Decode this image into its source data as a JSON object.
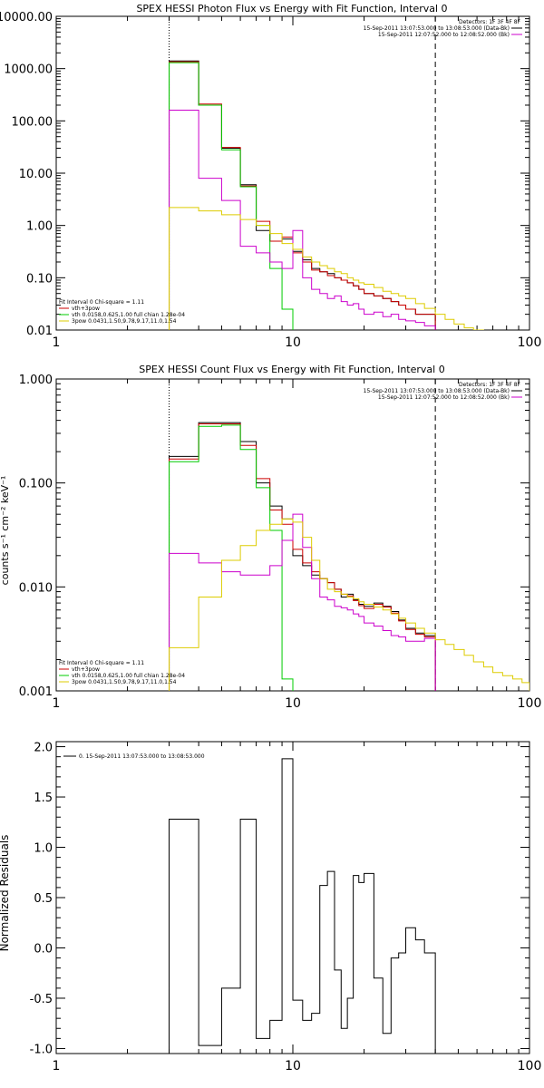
{
  "chart_data": [
    {
      "type": "line",
      "title": "SPEX HESSI Photon Flux vs Energy with Fit Function, Interval 0",
      "xscale": "log",
      "yscale": "log",
      "xlim": [
        1,
        100
      ],
      "ylim": [
        0.01,
        10000
      ],
      "xticks": [
        1,
        10,
        100
      ],
      "xticklabels": [
        "1",
        "10",
        "100"
      ],
      "yticks": [
        0.01,
        0.1,
        1,
        10,
        100,
        1000,
        10000
      ],
      "yticklabels": [
        "0.01",
        "0.10",
        "1.00",
        "10.00",
        "100.00",
        "1000.00",
        "10000.00"
      ],
      "vlines": [
        {
          "x": 3,
          "style": "dotted"
        },
        {
          "x": 40,
          "style": "dashed"
        }
      ],
      "legend_topright": [
        "Detectors: 1F 3F 4F 8F",
        "15-Sep-2011 13:07:53.000 to 13:08:53.000 (Data-Bk)",
        "15-Sep-2011 12:07:52.000 to 12:08:52.000 (Bk)"
      ],
      "legend_topright_colors": [
        "",
        "#000000",
        "#cc00cc"
      ],
      "legend_bottomleft": [
        "Fit Interval 0   Chi-square = 1.11",
        "vth+3pow",
        "vth 0.0158,0.625,1.00  full chian 1.28e-04",
        "3pow 0.0431,1.50,9.78,9.17,11.0,1.54"
      ],
      "legend_bottomleft_colors": [
        "",
        "#cc0000",
        "#00cc00",
        "#ddcc00"
      ],
      "series": [
        {
          "color": "#000000",
          "edges": [
            3,
            4,
            5,
            6,
            7,
            8,
            9,
            10,
            11,
            12,
            13,
            14,
            15,
            16,
            17,
            18,
            19,
            20,
            22,
            24,
            26,
            28,
            30,
            33,
            36,
            40
          ],
          "values": [
            1400,
            200,
            30,
            6,
            0.8,
            0.5,
            0.55,
            0.32,
            0.22,
            0.15,
            0.13,
            0.12,
            0.1,
            0.09,
            0.08,
            0.07,
            0.06,
            0.05,
            0.045,
            0.04,
            0.035,
            0.03,
            0.025,
            0.02,
            0.02
          ]
        },
        {
          "color": "#cc0000",
          "edges": [
            3,
            4,
            5,
            6,
            7,
            8,
            9,
            10,
            11,
            12,
            13,
            14,
            15,
            16,
            17,
            18,
            19,
            20,
            22,
            24,
            26,
            28,
            30,
            33,
            36,
            40
          ],
          "values": [
            1350,
            210,
            31,
            5.7,
            1.2,
            0.5,
            0.6,
            0.3,
            0.2,
            0.14,
            0.13,
            0.11,
            0.1,
            0.09,
            0.08,
            0.07,
            0.06,
            0.05,
            0.045,
            0.04,
            0.035,
            0.03,
            0.025,
            0.02,
            0.02
          ]
        },
        {
          "color": "#00cc00",
          "edges": [
            3,
            4,
            5,
            6,
            7,
            8,
            9,
            10
          ],
          "values": [
            1300,
            200,
            28,
            5.5,
            1.0,
            0.15,
            0.025
          ]
        },
        {
          "color": "#cc00cc",
          "edges": [
            3,
            4,
            5,
            6,
            7,
            8,
            9,
            10,
            11,
            12,
            13,
            14,
            15,
            16,
            17,
            18,
            19,
            20,
            22,
            24,
            26,
            28,
            30,
            33,
            36,
            40
          ],
          "values": [
            160,
            8,
            3,
            0.4,
            0.3,
            0.2,
            0.15,
            0.8,
            0.1,
            0.06,
            0.05,
            0.04,
            0.045,
            0.035,
            0.03,
            0.032,
            0.025,
            0.02,
            0.022,
            0.018,
            0.02,
            0.016,
            0.015,
            0.014,
            0.012
          ]
        },
        {
          "color": "#ddcc00",
          "edges": [
            3,
            4,
            5,
            6,
            7,
            8,
            9,
            10,
            11,
            12,
            13,
            14,
            15,
            16,
            17,
            18,
            19,
            20,
            22,
            24,
            26,
            28,
            30,
            33,
            36,
            40,
            44,
            48,
            53,
            58,
            64
          ],
          "values": [
            2.2,
            1.9,
            1.6,
            1.3,
            1.0,
            0.7,
            0.45,
            0.35,
            0.25,
            0.2,
            0.17,
            0.15,
            0.13,
            0.12,
            0.1,
            0.09,
            0.08,
            0.075,
            0.065,
            0.055,
            0.05,
            0.045,
            0.04,
            0.032,
            0.026,
            0.02,
            0.016,
            0.013,
            0.011,
            0.01
          ]
        }
      ]
    },
    {
      "type": "line",
      "title": "SPEX HESSI Count Flux vs Energy with Fit Function, Interval 0",
      "ylabel": "counts s⁻¹ cm⁻² keV⁻¹",
      "xscale": "log",
      "yscale": "log",
      "xlim": [
        1,
        100
      ],
      "ylim": [
        0.001,
        1
      ],
      "xticks": [
        1,
        10,
        100
      ],
      "xticklabels": [
        "1",
        "10",
        "100"
      ],
      "yticks": [
        0.001,
        0.01,
        0.1,
        1
      ],
      "yticklabels": [
        "0.001",
        "0.010",
        "0.100",
        "1.000"
      ],
      "vlines": [
        {
          "x": 3,
          "style": "dotted"
        },
        {
          "x": 40,
          "style": "dashed"
        }
      ],
      "legend_topright": [
        "Detectors: 1F 3F 4F 8F",
        "15-Sep-2011 13:07:53.000 to 13:08:53.000 (Data-Bk)",
        "15-Sep-2011 12:07:52.000 to 12:08:52.000 (Bk)"
      ],
      "legend_topright_colors": [
        "",
        "#000000",
        "#cc00cc"
      ],
      "legend_bottomleft": [
        "Fit Interval 0   Chi-square = 1.11",
        "vth+3pow",
        "vth 0.0158,0.625,1.00  full chian 1.28e-04",
        "3pow 0.0431,1.50,9.78,9.17,11.0,1.54"
      ],
      "legend_bottomleft_colors": [
        "",
        "#cc0000",
        "#00cc00",
        "#ddcc00"
      ],
      "series": [
        {
          "color": "#000000",
          "edges": [
            3,
            4,
            5,
            6,
            7,
            8,
            9,
            10,
            11,
            12,
            13,
            14,
            15,
            16,
            17,
            18,
            19,
            20,
            22,
            24,
            26,
            28,
            30,
            33,
            36,
            40
          ],
          "values": [
            0.18,
            0.38,
            0.38,
            0.25,
            0.1,
            0.06,
            0.045,
            0.02,
            0.016,
            0.013,
            0.012,
            0.011,
            0.0095,
            0.008,
            0.0085,
            0.0075,
            0.0068,
            0.0065,
            0.007,
            0.0065,
            0.0058,
            0.0048,
            0.004,
            0.0036,
            0.0034
          ]
        },
        {
          "color": "#cc0000",
          "edges": [
            3,
            4,
            5,
            6,
            7,
            8,
            9,
            10,
            11,
            12,
            13,
            14,
            15,
            16,
            17,
            18,
            19,
            20,
            22,
            24,
            26,
            28,
            30,
            33,
            36,
            40
          ],
          "values": [
            0.17,
            0.37,
            0.37,
            0.23,
            0.11,
            0.055,
            0.04,
            0.023,
            0.017,
            0.014,
            0.012,
            0.011,
            0.0095,
            0.0085,
            0.0082,
            0.0074,
            0.0066,
            0.0062,
            0.0068,
            0.0064,
            0.0056,
            0.0047,
            0.0039,
            0.0035,
            0.0033
          ]
        },
        {
          "color": "#00cc00",
          "edges": [
            3,
            4,
            5,
            6,
            7,
            8,
            9,
            10
          ],
          "values": [
            0.16,
            0.35,
            0.36,
            0.21,
            0.09,
            0.035,
            0.0013
          ]
        },
        {
          "color": "#cc00cc",
          "edges": [
            3,
            4,
            5,
            6,
            7,
            8,
            9,
            10,
            11,
            12,
            13,
            14,
            15,
            16,
            17,
            18,
            19,
            20,
            22,
            24,
            26,
            28,
            30,
            33,
            36,
            40
          ],
          "values": [
            0.021,
            0.017,
            0.014,
            0.013,
            0.013,
            0.016,
            0.028,
            0.05,
            0.024,
            0.012,
            0.008,
            0.0075,
            0.0065,
            0.0063,
            0.006,
            0.0055,
            0.0052,
            0.0045,
            0.0042,
            0.0038,
            0.0034,
            0.0033,
            0.003,
            0.003,
            0.0032
          ]
        },
        {
          "color": "#ddcc00",
          "edges": [
            3,
            4,
            5,
            6,
            7,
            8,
            9,
            10,
            11,
            12,
            13,
            14,
            15,
            16,
            17,
            18,
            19,
            20,
            22,
            24,
            26,
            28,
            30,
            33,
            36,
            40,
            44,
            48,
            53,
            58,
            64,
            70,
            77,
            85,
            93,
            100
          ],
          "values": [
            0.0026,
            0.008,
            0.018,
            0.025,
            0.035,
            0.04,
            0.045,
            0.042,
            0.03,
            0.018,
            0.012,
            0.0095,
            0.009,
            0.0085,
            0.008,
            0.0077,
            0.0072,
            0.0068,
            0.0064,
            0.006,
            0.0055,
            0.005,
            0.0045,
            0.004,
            0.0036,
            0.0031,
            0.0028,
            0.0025,
            0.0022,
            0.0019,
            0.0017,
            0.0015,
            0.0014,
            0.0013,
            0.0012
          ]
        }
      ]
    },
    {
      "type": "line",
      "ylabel": "Normalized Residuals",
      "xscale": "log",
      "yscale": "linear",
      "xlim": [
        1,
        100
      ],
      "ylim": [
        -1.05,
        2.05
      ],
      "xticks": [
        1,
        10,
        100
      ],
      "xticklabels": [
        "1",
        "10",
        "100"
      ],
      "yticks": [
        -1.0,
        -0.5,
        0.0,
        0.5,
        1.0,
        1.5,
        2.0
      ],
      "yticklabels": [
        "-1.0",
        "-0.5",
        "0.0",
        "0.5",
        "1.0",
        "1.5",
        "2.0"
      ],
      "legend": "0. 15-Sep-2011 13:07:53.000 to 13:08:53.000",
      "series": [
        {
          "color": "#000000",
          "edges": [
            3,
            4,
            5,
            6,
            7,
            8,
            9,
            10,
            11,
            12,
            13,
            14,
            15,
            16,
            17,
            18,
            19,
            20,
            22,
            24,
            26,
            28,
            30,
            33,
            36,
            40
          ],
          "values": [
            1.28,
            -0.97,
            -0.4,
            1.28,
            -0.9,
            -0.72,
            1.88,
            -0.52,
            -0.72,
            -0.65,
            0.62,
            0.76,
            -0.22,
            -0.8,
            -0.5,
            0.72,
            0.65,
            0.74,
            -0.3,
            -0.85,
            -0.1,
            -0.05,
            0.2,
            0.08,
            -0.05
          ]
        }
      ]
    }
  ]
}
